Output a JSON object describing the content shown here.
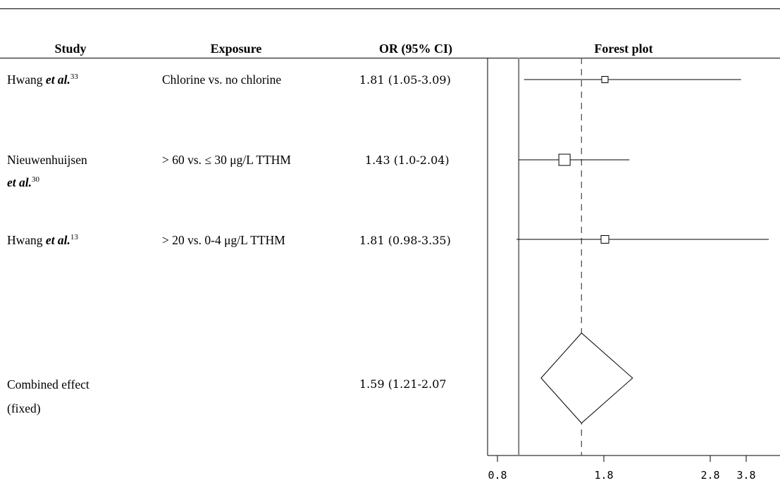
{
  "headers": {
    "study": "Study",
    "exposure": "Exposure",
    "or": "OR (95% CI)",
    "forest": "Forest plot"
  },
  "rows": [
    {
      "study_main": "Hwang ",
      "study_etal": "et al.",
      "study_ref": "33",
      "exposure": "Chlorine vs. no chlorine",
      "or_text": "1.81  (1.05-3.09)"
    },
    {
      "study_main": "Nieuwenhuijsen",
      "study_etal": "et al.",
      "study_ref": "30",
      "exposure": "> 60 vs. ≤ 30 μg/L TTHM",
      "or_text": "1.43  (1.0-2.04)"
    },
    {
      "study_main": "Hwang ",
      "study_etal": "et al.",
      "study_ref": "13",
      "exposure": "> 20 vs. 0-4 μg/L TTHM",
      "or_text": "1.81  (0.98-3.35)"
    }
  ],
  "combined": {
    "label_line1": "Combined effect",
    "label_line2": "(fixed)",
    "or_text": "1.59  (1.21-2.07"
  },
  "chart_data": {
    "type": "forest",
    "title": "Forest plot",
    "x_ticks": [
      0.8,
      1.8,
      2.8,
      3.8
    ],
    "x_tick_labels": [
      "0.8",
      "1.8",
      "2.8",
      "3.8"
    ],
    "null_line": 1.0,
    "pooled_line": 1.59,
    "studies": [
      {
        "label": "Hwang et al. 33",
        "or": 1.81,
        "lower": 1.05,
        "upper": 3.09
      },
      {
        "label": "Nieuwenhuijsen et al. 30",
        "or": 1.43,
        "lower": 1.0,
        "upper": 2.04
      },
      {
        "label": "Hwang et al. 13",
        "or": 1.81,
        "lower": 0.98,
        "upper": 3.35
      }
    ],
    "combined": {
      "label": "Combined effect (fixed)",
      "or": 1.59,
      "lower": 1.21,
      "upper": 2.07
    }
  }
}
